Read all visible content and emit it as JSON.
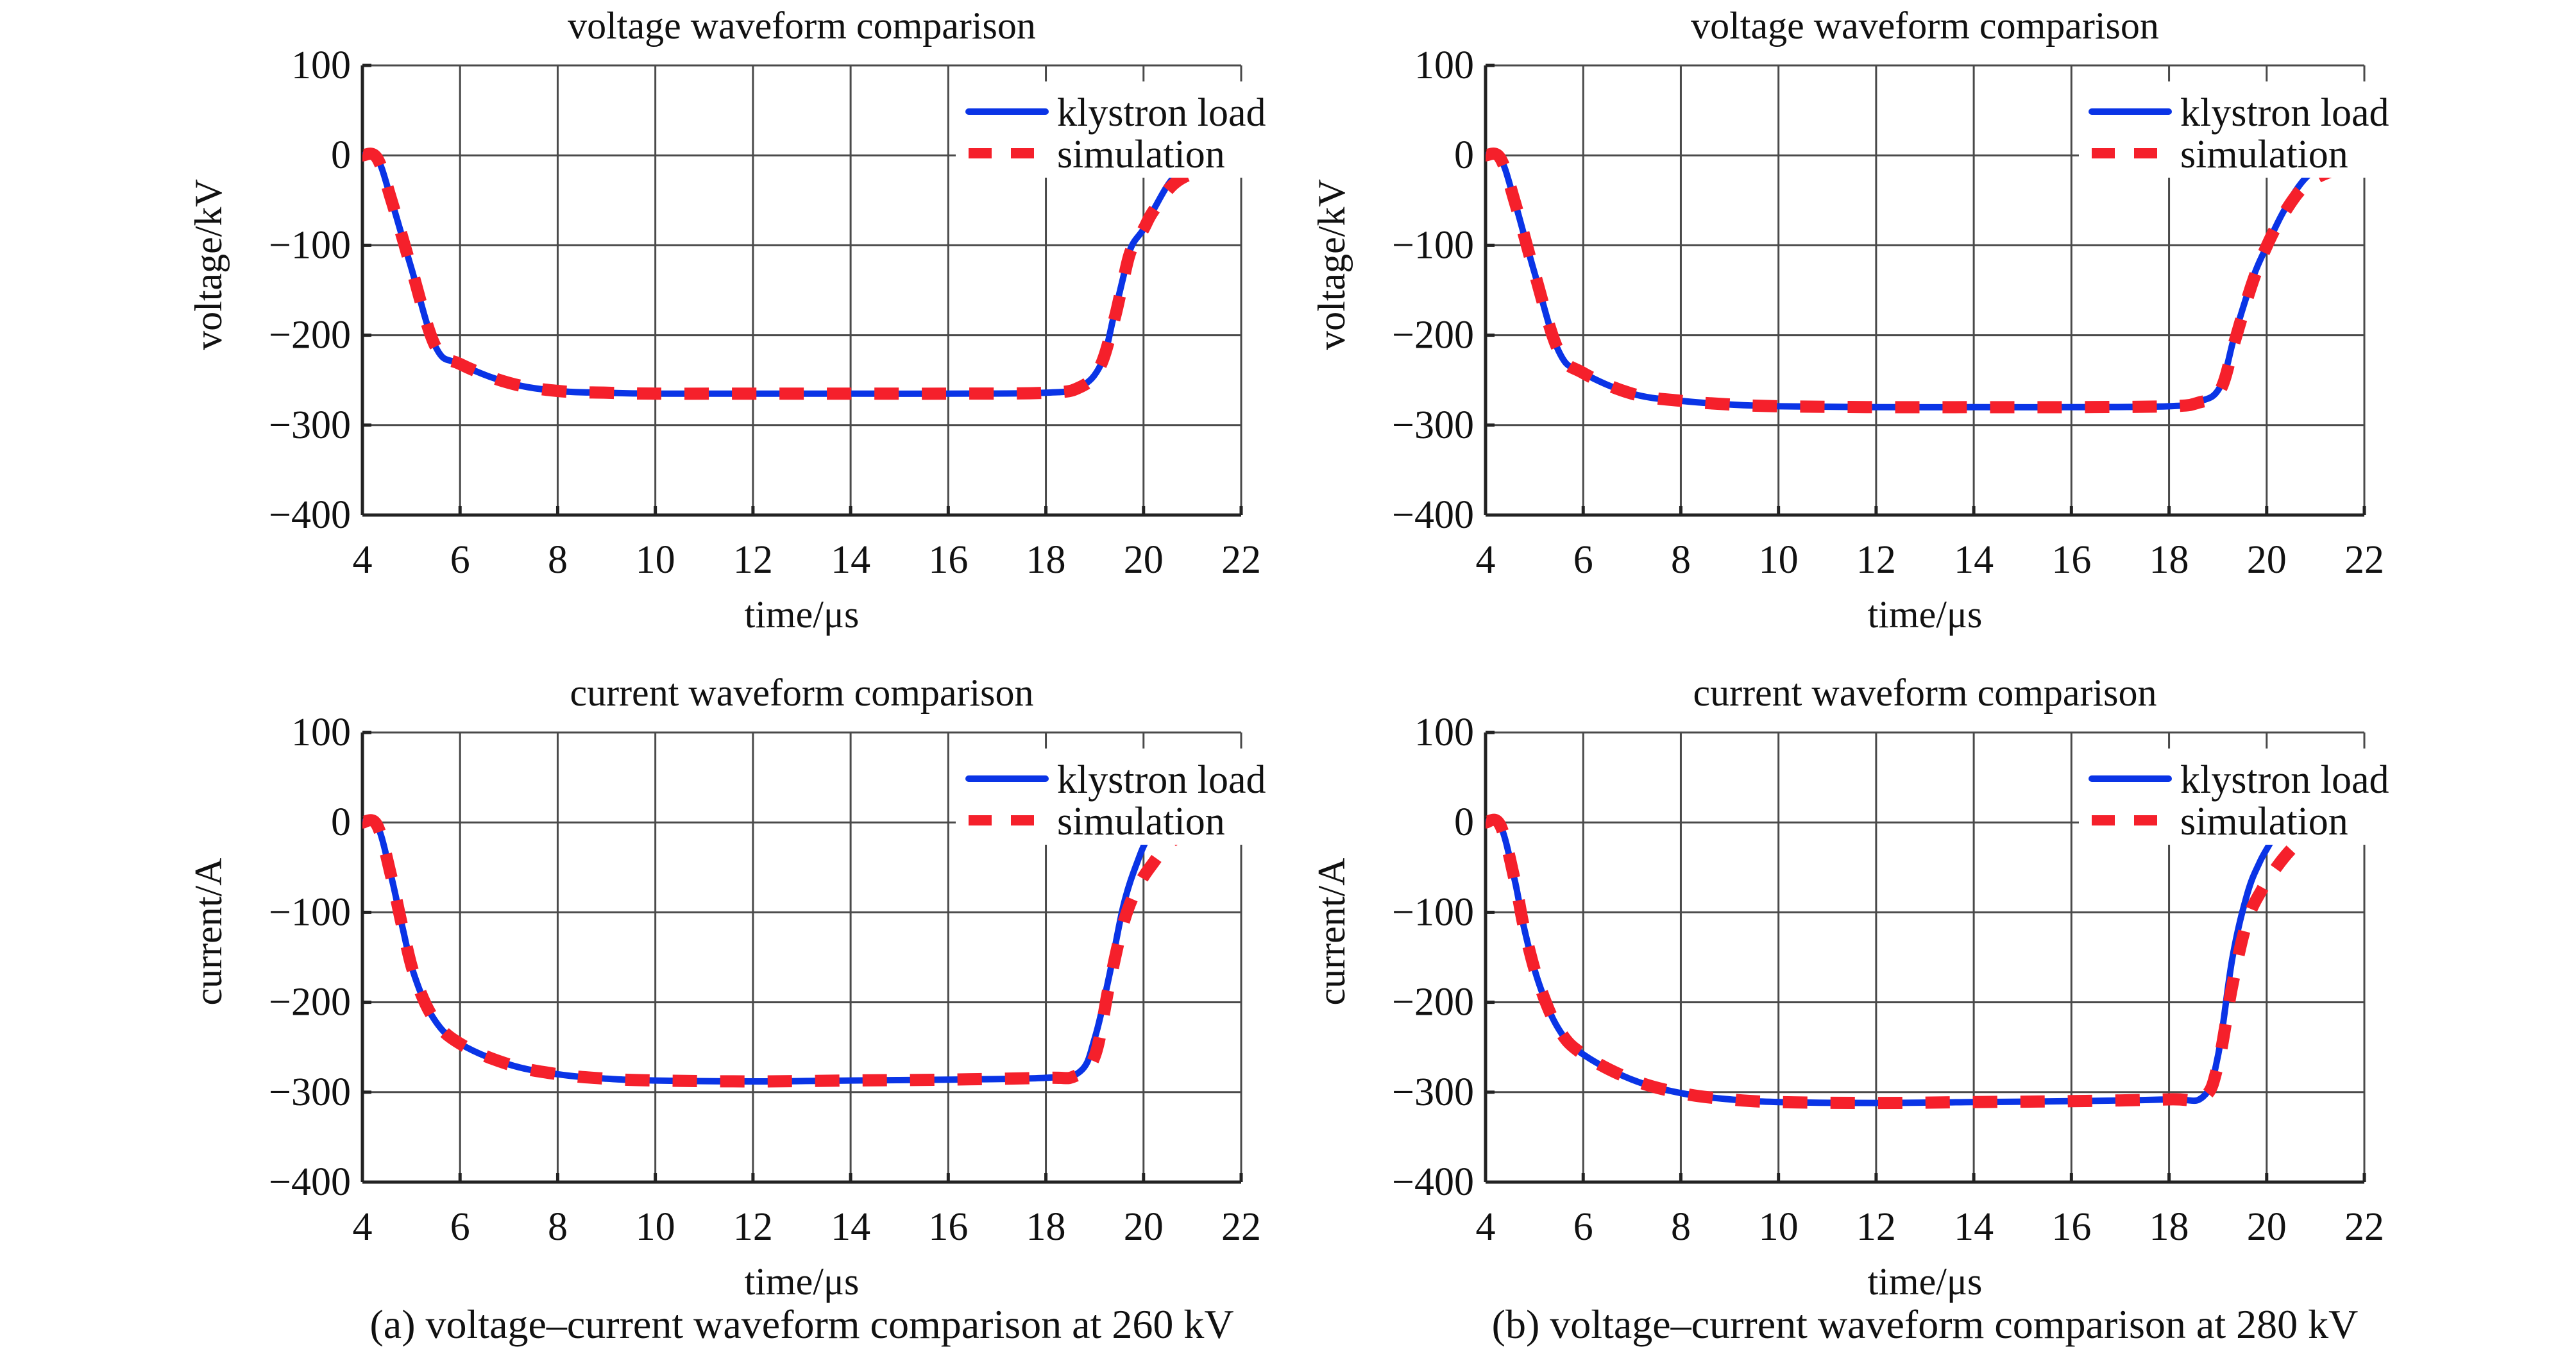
{
  "figure": {
    "captions": [
      "(a) voltage–current waveform comparison at 260 kV",
      "(b) voltage–current waveform comparison at 280 kV"
    ]
  },
  "colors": {
    "klystron": "#0a34e6",
    "simulation": "#f5202b",
    "grid": "#4a4a4a",
    "axis": "#222222"
  },
  "chart_data": [
    {
      "id": "a-voltage",
      "type": "line",
      "title": "voltage waveform comparison",
      "xlabel": "time/μs",
      "ylabel": "voltage/kV",
      "xlim": [
        4,
        22
      ],
      "ylim": [
        -400,
        100
      ],
      "xticks": [
        4,
        6,
        8,
        10,
        12,
        14,
        16,
        18,
        20,
        22
      ],
      "yticks": [
        100,
        0,
        -100,
        -200,
        -300,
        -400
      ],
      "ytick_labels": [
        "100",
        "0",
        "−100",
        "−200",
        "−300",
        "−400"
      ],
      "grid": true,
      "legend": {
        "position": "top-right",
        "entries": [
          "klystron load",
          "simulation"
        ]
      },
      "series": [
        {
          "name": "klystron load",
          "style": "solid",
          "x": [
            4.0,
            4.3,
            4.6,
            5.0,
            5.5,
            6.0,
            7.0,
            8.0,
            9.0,
            10.0,
            12.0,
            14.0,
            16.0,
            18.0,
            18.69,
            19.13,
            19.39,
            19.57,
            19.74,
            20.0,
            20.2,
            20.66,
            21.3,
            22.0
          ],
          "y": [
            0,
            -3,
            -51,
            -125,
            -213,
            -232,
            -253,
            -262,
            -264,
            -265,
            -265,
            -265,
            -265,
            -264,
            -258,
            -232,
            -179,
            -139,
            -103,
            -82,
            -61,
            -22,
            -1,
            5
          ]
        },
        {
          "name": "simulation",
          "style": "dashed",
          "x": [
            4.0,
            4.3,
            4.6,
            5.0,
            5.5,
            6.0,
            7.0,
            8.0,
            9.0,
            10.0,
            12.0,
            14.0,
            16.0,
            18.0,
            18.69,
            19.1,
            19.39,
            19.57,
            19.74,
            20.0,
            20.2,
            20.66,
            21.3,
            22.0
          ],
          "y": [
            0,
            -3,
            -51,
            -125,
            -213,
            -232,
            -253,
            -262,
            -264,
            -265,
            -265,
            -265,
            -265,
            -264,
            -258,
            -236,
            -185,
            -143,
            -106,
            -82,
            -62,
            -30,
            -16,
            -13
          ]
        }
      ]
    },
    {
      "id": "b-voltage",
      "type": "line",
      "title": "voltage waveform comparison",
      "xlabel": "time/μs",
      "ylabel": "voltage/kV",
      "xlim": [
        4,
        22
      ],
      "ylim": [
        -400,
        100
      ],
      "xticks": [
        4,
        6,
        8,
        10,
        12,
        14,
        16,
        18,
        20,
        22
      ],
      "yticks": [
        100,
        0,
        -100,
        -200,
        -300,
        -400
      ],
      "ytick_labels": [
        "100",
        "0",
        "−100",
        "−200",
        "−300",
        "−400"
      ],
      "grid": true,
      "legend": {
        "position": "top-right",
        "entries": [
          "klystron load",
          "simulation"
        ]
      },
      "series": [
        {
          "name": "klystron load",
          "style": "solid",
          "x": [
            4.0,
            4.3,
            4.6,
            5.0,
            5.5,
            6.0,
            7.0,
            8.0,
            9.0,
            10.0,
            12.0,
            14.0,
            16.0,
            18.0,
            18.6,
            19.04,
            19.35,
            19.7,
            20.0,
            20.36,
            20.8,
            21.33,
            22.0
          ],
          "y": [
            0,
            -3,
            -52,
            -130,
            -218,
            -242,
            -265,
            -273,
            -277,
            -279,
            -280,
            -280,
            -280,
            -279,
            -274,
            -258,
            -199,
            -139,
            -101,
            -61,
            -25,
            -6,
            2
          ]
        },
        {
          "name": "simulation",
          "style": "dashed",
          "x": [
            4.0,
            4.3,
            4.6,
            5.0,
            5.5,
            6.0,
            7.0,
            8.0,
            9.0,
            10.0,
            12.0,
            14.0,
            16.0,
            18.0,
            18.6,
            19.04,
            19.35,
            19.7,
            20.0,
            20.36,
            20.8,
            21.36,
            21.7
          ],
          "y": [
            0,
            -3,
            -52,
            -130,
            -218,
            -242,
            -265,
            -273,
            -277,
            -279,
            -280,
            -280,
            -280,
            -279,
            -275,
            -262,
            -206,
            -143,
            -101,
            -64,
            -33,
            -17,
            -14
          ]
        }
      ]
    },
    {
      "id": "a-current",
      "type": "line",
      "title": "current waveform comparison",
      "xlabel": "time/μs",
      "ylabel": "current/A",
      "xlim": [
        4,
        22
      ],
      "ylim": [
        -400,
        100
      ],
      "xticks": [
        4,
        6,
        8,
        10,
        12,
        14,
        16,
        18,
        20,
        22
      ],
      "yticks": [
        100,
        0,
        -100,
        -200,
        -300,
        -400
      ],
      "ytick_labels": [
        "100",
        "0",
        "−100",
        "−200",
        "−300",
        "−400"
      ],
      "grid": true,
      "legend": {
        "position": "top-right",
        "entries": [
          "klystron load",
          "simulation"
        ]
      },
      "series": [
        {
          "name": "klystron load",
          "style": "solid",
          "x": [
            4.0,
            4.3,
            4.59,
            4.81,
            5.07,
            5.47,
            6.0,
            6.99,
            8.0,
            9.0,
            10.0,
            12.0,
            14.0,
            16.0,
            18.0,
            18.7,
            19.0,
            19.3,
            19.6,
            19.9,
            20.1,
            20.3,
            20.5,
            20.65,
            20.85,
            21.1,
            21.35,
            21.55,
            21.7,
            21.85,
            22.0
          ],
          "y": [
            0,
            -3,
            -60,
            -114,
            -171,
            -219,
            -246,
            -269,
            -280,
            -285,
            -287,
            -288,
            -287,
            -286,
            -284,
            -277,
            -240,
            -170,
            -90,
            -40,
            -15,
            8,
            15,
            8,
            17,
            20,
            17,
            5,
            13,
            10,
            5
          ]
        },
        {
          "name": "simulation",
          "style": "dashed",
          "x": [
            4.0,
            4.3,
            4.59,
            4.81,
            5.07,
            5.47,
            6.0,
            6.99,
            8.0,
            9.0,
            10.0,
            12.0,
            14.0,
            16.0,
            18.0,
            18.6,
            19.0,
            19.3,
            19.6,
            19.9,
            20.2,
            20.5,
            20.9,
            21.3,
            21.7,
            22.0
          ],
          "y": [
            0,
            -3,
            -60,
            -114,
            -171,
            -219,
            -246,
            -269,
            -280,
            -285,
            -287,
            -288,
            -287,
            -286,
            -284,
            -282,
            -260,
            -180,
            -110,
            -70,
            -45,
            -25,
            -10,
            -3,
            0,
            -2
          ]
        }
      ]
    },
    {
      "id": "b-current",
      "type": "line",
      "title": "current waveform comparison",
      "xlabel": "time/μs",
      "ylabel": "current/A",
      "xlim": [
        4,
        22
      ],
      "ylim": [
        -400,
        100
      ],
      "xticks": [
        4,
        6,
        8,
        10,
        12,
        14,
        16,
        18,
        20,
        22
      ],
      "yticks": [
        100,
        0,
        -100,
        -200,
        -300,
        -400
      ],
      "ytick_labels": [
        "100",
        "0",
        "−100",
        "−200",
        "−300",
        "−400"
      ],
      "grid": true,
      "legend": {
        "position": "top-right",
        "entries": [
          "klystron load",
          "simulation"
        ]
      },
      "series": [
        {
          "name": "klystron load",
          "style": "solid",
          "x": [
            4.0,
            4.3,
            4.6,
            4.8,
            5.1,
            5.5,
            6.0,
            7.0,
            8.0,
            9.0,
            10.0,
            12.0,
            14.0,
            16.0,
            18.0,
            18.7,
            19.0,
            19.3,
            19.6,
            19.85,
            20.1,
            20.35,
            20.55,
            20.75,
            21.0,
            21.3,
            21.55,
            21.7,
            21.85,
            22.0
          ],
          "y": [
            0,
            -3,
            -65,
            -120,
            -180,
            -230,
            -258,
            -286,
            -301,
            -308,
            -311,
            -312,
            -311,
            -310,
            -308,
            -305,
            -260,
            -150,
            -80,
            -45,
            -20,
            10,
            13,
            8,
            18,
            16,
            5,
            10,
            12,
            7
          ]
        },
        {
          "name": "simulation",
          "style": "dashed",
          "x": [
            4.0,
            4.3,
            4.6,
            4.8,
            5.1,
            5.5,
            6.0,
            7.0,
            8.0,
            9.0,
            10.0,
            12.0,
            14.0,
            16.0,
            18.0,
            18.7,
            19.0,
            19.3,
            19.6,
            19.9,
            20.2,
            20.5,
            20.8,
            21.2,
            21.6,
            22.0
          ],
          "y": [
            0,
            -3,
            -65,
            -120,
            -180,
            -230,
            -258,
            -286,
            -301,
            -308,
            -311,
            -312,
            -311,
            -310,
            -308,
            -306,
            -270,
            -180,
            -110,
            -75,
            -50,
            -30,
            -15,
            -5,
            -2,
            -3
          ]
        }
      ]
    }
  ]
}
